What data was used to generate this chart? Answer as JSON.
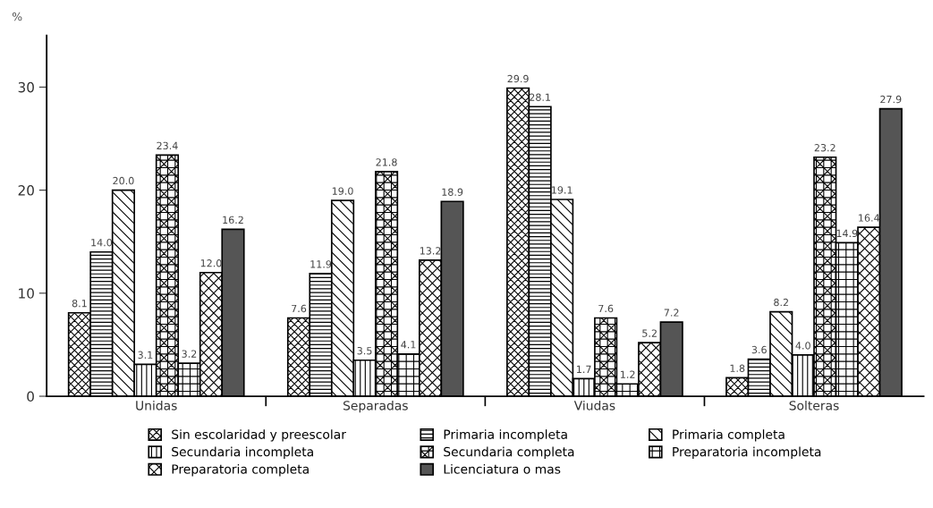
{
  "chart_data": {
    "type": "bar",
    "ylabel": "%",
    "categories": [
      "Unidas",
      "Separadas",
      "Viudas",
      "Solteras"
    ],
    "series": [
      {
        "name": "Sin escolaridad y preescolar",
        "color": "#000000",
        "values": [
          8.1,
          7.6,
          29.9,
          1.8
        ],
        "value_labels": [
          "8.1",
          "7.6",
          "29.9",
          "1.8"
        ]
      },
      {
        "name": "Primaria incompleta",
        "color": "#000000",
        "values": [
          14.0,
          11.9,
          28.1,
          3.6
        ],
        "value_labels": [
          "14.0",
          "11.9",
          "28.1",
          "3.6"
        ]
      },
      {
        "name": "Primaria completa",
        "color": "#000000",
        "values": [
          20.0,
          19.0,
          19.1,
          8.2
        ],
        "value_labels": [
          "20.0",
          "19.0",
          "19.1",
          "8.2"
        ]
      },
      {
        "name": "Secundaria incompleta",
        "color": "#000000",
        "values": [
          3.1,
          3.5,
          1.7,
          4.0
        ],
        "value_labels": [
          "3.1",
          "3.5",
          "1.7",
          "4.0"
        ]
      },
      {
        "name": "Secundaria completa",
        "color": "#000000",
        "values": [
          23.4,
          21.8,
          7.6,
          23.2
        ],
        "value_labels": [
          "23.4",
          "21.8",
          "7.6",
          "23.2"
        ]
      },
      {
        "name": "Preparatoria incompleta",
        "color": "#000000",
        "values": [
          3.2,
          4.1,
          1.2,
          14.9
        ],
        "value_labels": [
          "3.2",
          "4.1",
          "1.2",
          "14.9"
        ]
      },
      {
        "name": "Preparatoria completa",
        "color": "#000000",
        "values": [
          12.0,
          13.2,
          5.2,
          16.4
        ],
        "value_labels": [
          "12.0",
          "13.2",
          "5.2",
          "16.4"
        ]
      },
      {
        "name": "Licenciatura o mas",
        "color": "#555555",
        "values": [
          16.2,
          18.9,
          7.2,
          27.9
        ],
        "value_labels": [
          "16.2",
          "18.9",
          "7.2",
          "27.9"
        ]
      }
    ],
    "ylim": [
      0,
      35
    ],
    "yticks": [
      0,
      10,
      20,
      30
    ],
    "legend": "bottom",
    "grid": false
  }
}
